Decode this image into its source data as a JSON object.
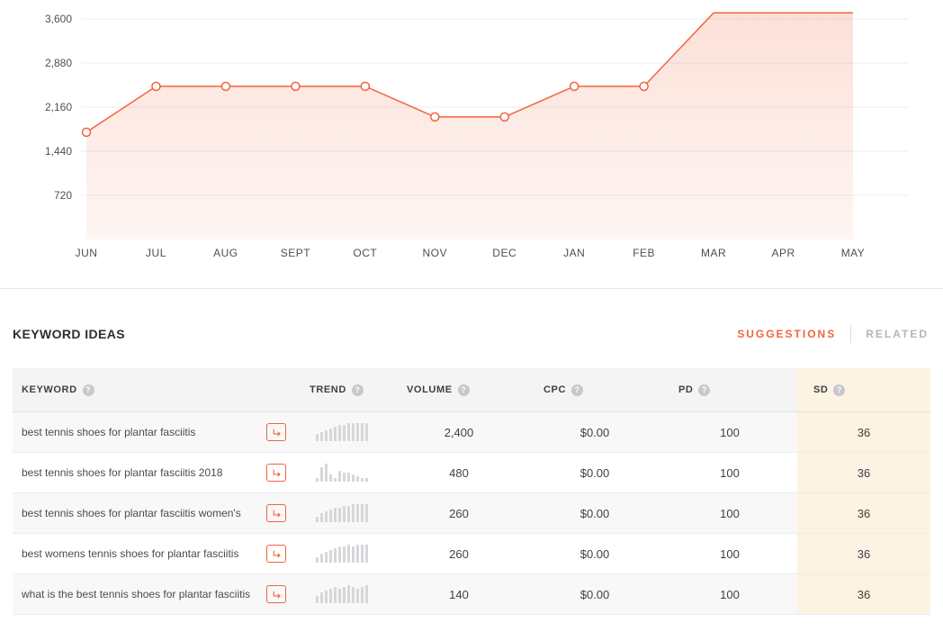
{
  "colors": {
    "accent": "#f0653e",
    "sd_highlight": "#fcf3e2",
    "trend_bar": "#d7d7db",
    "grid_line": "#ececee"
  },
  "icons": {
    "help_glyph": "?",
    "keyword_arrow": "arrow-right-icon"
  },
  "chart_data": {
    "type": "area",
    "title": "",
    "xlabel": "",
    "ylabel": "",
    "categories": [
      "JUN",
      "JUL",
      "AUG",
      "SEPT",
      "OCT",
      "NOV",
      "DEC",
      "JAN",
      "FEB",
      "MAR",
      "APR",
      "MAY"
    ],
    "values": [
      1750,
      2500,
      2500,
      2500,
      2500,
      2000,
      2000,
      2500,
      2500,
      3700,
      3700,
      3700
    ],
    "markers_on": [
      true,
      true,
      true,
      true,
      true,
      true,
      true,
      true,
      true,
      false,
      false,
      false
    ],
    "yticks": [
      "3,600",
      "2,880",
      "2,160",
      "1,440",
      "720"
    ],
    "ytick_values": [
      3600,
      2880,
      2160,
      1440,
      720
    ],
    "ylim": [
      0,
      3700
    ],
    "grid": true,
    "legend": "none",
    "line_color": "#f0653e"
  },
  "section": {
    "title": "KEYWORD IDEAS",
    "tabs": [
      {
        "label": "SUGGESTIONS",
        "active": true
      },
      {
        "label": "RELATED",
        "active": false
      }
    ]
  },
  "table": {
    "columns": [
      "KEYWORD",
      "TREND",
      "VOLUME",
      "CPC",
      "PD",
      "SD"
    ],
    "rows": [
      {
        "keyword": "best tennis shoes for plantar fasciitis",
        "trend": [
          4,
          5,
          6,
          7,
          8,
          9,
          9,
          10,
          10,
          10,
          10,
          10
        ],
        "volume": "2,400",
        "cpc": "$0.00",
        "pd": "100",
        "sd": "36"
      },
      {
        "keyword": "best tennis shoes for plantar fasciitis 2018",
        "trend": [
          2,
          8,
          10,
          4,
          2,
          6,
          5,
          5,
          4,
          3,
          2,
          2
        ],
        "volume": "480",
        "cpc": "$0.00",
        "pd": "100",
        "sd": "36"
      },
      {
        "keyword": "best tennis shoes for plantar fasciitis women's",
        "trend": [
          3,
          5,
          6,
          7,
          8,
          8,
          9,
          9,
          10,
          10,
          10,
          10
        ],
        "volume": "260",
        "cpc": "$0.00",
        "pd": "100",
        "sd": "36"
      },
      {
        "keyword": "best womens tennis shoes for plantar fasciitis",
        "trend": [
          3,
          5,
          6,
          7,
          8,
          9,
          9,
          10,
          9,
          10,
          10,
          10
        ],
        "volume": "260",
        "cpc": "$0.00",
        "pd": "100",
        "sd": "36"
      },
      {
        "keyword": "what is the best tennis shoes for plantar fasciitis",
        "trend": [
          4,
          6,
          7,
          8,
          9,
          8,
          9,
          10,
          9,
          8,
          9,
          10
        ],
        "volume": "140",
        "cpc": "$0.00",
        "pd": "100",
        "sd": "36"
      }
    ]
  }
}
